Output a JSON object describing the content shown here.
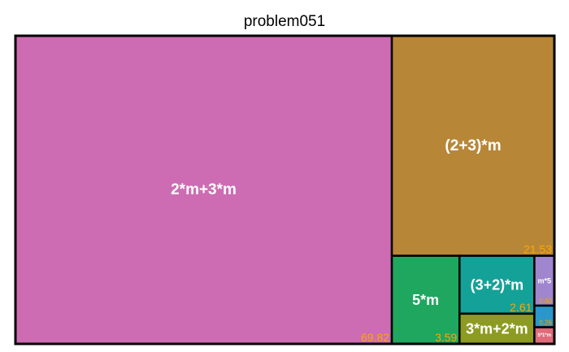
{
  "chart_data": {
    "type": "treemap",
    "title": "problem051",
    "items": [
      {
        "label": "2*m+3*m",
        "value": 69.82,
        "value_text": "69.82",
        "color": "#cd6cb3"
      },
      {
        "label": "(2+3)*m",
        "value": 21.53,
        "value_text": "21.53",
        "color": "#b78737"
      },
      {
        "label": "5*m",
        "value": 3.59,
        "value_text": "3.59",
        "color": "#1fa65f"
      },
      {
        "label": "(3+2)*m",
        "value": 2.61,
        "value_text": "2.61",
        "color": "#14a198"
      },
      {
        "label": "3*m+2*m",
        "value": 1.36,
        "value_text": "",
        "color": "#8d9b22"
      },
      {
        "label": "m*5",
        "value": 0.6,
        "value_text": "0.60",
        "color": "#a085cf"
      },
      {
        "label": "",
        "value": 0.26,
        "value_text": "0.26",
        "color": "#2b96c9"
      },
      {
        "label": "5*1*m",
        "value": 0.2,
        "value_text": "",
        "color": "#e06b7a"
      }
    ],
    "value_label_color": "#ffa500",
    "border_color": "#000000"
  }
}
